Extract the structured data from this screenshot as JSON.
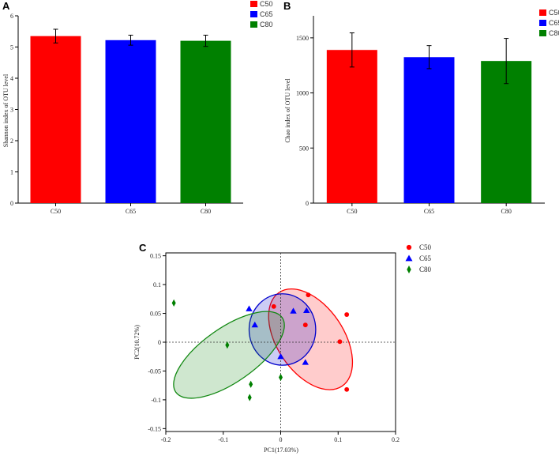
{
  "colors": {
    "C50": "#ff0000",
    "C65": "#0000ff",
    "C80": "#008000",
    "ellipse_C50": "#ff0000",
    "ellipse_C65": "#0000cc",
    "ellipse_C80": "#118811"
  },
  "chart_data": [
    {
      "panel": "A",
      "type": "bar",
      "ylabel": "Shannon index of OTU level",
      "xlabel": "",
      "categories": [
        "C50",
        "C65",
        "C80"
      ],
      "values": [
        5.35,
        5.22,
        5.2
      ],
      "errors": [
        0.22,
        0.16,
        0.18
      ],
      "ylim": [
        0,
        6
      ],
      "yticks": [
        "0",
        "1",
        "2",
        "3",
        "4",
        "5",
        "6"
      ],
      "legend": [
        "C50",
        "C65",
        "C80"
      ],
      "legend_position": "top-right",
      "grid": false
    },
    {
      "panel": "B",
      "type": "bar",
      "ylabel": "Chao index of OTU level",
      "xlabel": "",
      "categories": [
        "C50",
        "C65",
        "C80"
      ],
      "values": [
        1390,
        1325,
        1290
      ],
      "errors": [
        155,
        105,
        205
      ],
      "ylim": [
        0,
        1700
      ],
      "yticks": [
        "0",
        "500",
        "1000",
        "1500"
      ],
      "legend": [
        "C50",
        "C65",
        "C80"
      ],
      "legend_position": "top-right",
      "grid": false
    },
    {
      "panel": "C",
      "type": "scatter",
      "xlabel": "PC1(17.03%)",
      "ylabel": "PC2(10.72%)",
      "xlim": [
        -0.2,
        0.2
      ],
      "ylim": [
        -0.155,
        0.155
      ],
      "xticks": [
        "-0.2",
        "-0.1",
        "0",
        "0.1",
        "0.2"
      ],
      "yticks": [
        "-0.15",
        "-0.1",
        "-0.05",
        "0",
        "0.05",
        "0.1",
        "0.15"
      ],
      "legend_position": "top-right",
      "grid": false,
      "series": [
        {
          "name": "C50",
          "marker": "circle",
          "points": [
            [
              -0.012,
              0.062
            ],
            [
              0.048,
              0.082
            ],
            [
              0.043,
              0.03
            ],
            [
              0.115,
              0.048
            ],
            [
              0.103,
              0.001
            ],
            [
              0.115,
              -0.082
            ]
          ],
          "ellipse": {
            "cx": 0.052,
            "cy": 0.005,
            "rx": 0.058,
            "ry": 0.098,
            "angle_deg": -34
          }
        },
        {
          "name": "C65",
          "marker": "triangle",
          "points": [
            [
              -0.055,
              0.058
            ],
            [
              -0.045,
              0.03
            ],
            [
              0.022,
              0.054
            ],
            [
              0.045,
              0.055
            ],
            [
              0.0,
              -0.025
            ],
            [
              0.043,
              -0.035
            ]
          ],
          "ellipse": {
            "cx": 0.003,
            "cy": 0.022,
            "rx": 0.058,
            "ry": 0.062,
            "angle_deg": 0
          }
        },
        {
          "name": "C80",
          "marker": "diamond",
          "points": [
            [
              -0.186,
              0.068
            ],
            [
              -0.093,
              -0.005
            ],
            [
              -0.052,
              -0.073
            ],
            [
              -0.054,
              -0.096
            ],
            [
              0.0,
              -0.061
            ]
          ],
          "ellipse": {
            "cx": -0.09,
            "cy": -0.022,
            "rx": 0.113,
            "ry": 0.047,
            "angle_deg": -35
          }
        }
      ]
    }
  ]
}
